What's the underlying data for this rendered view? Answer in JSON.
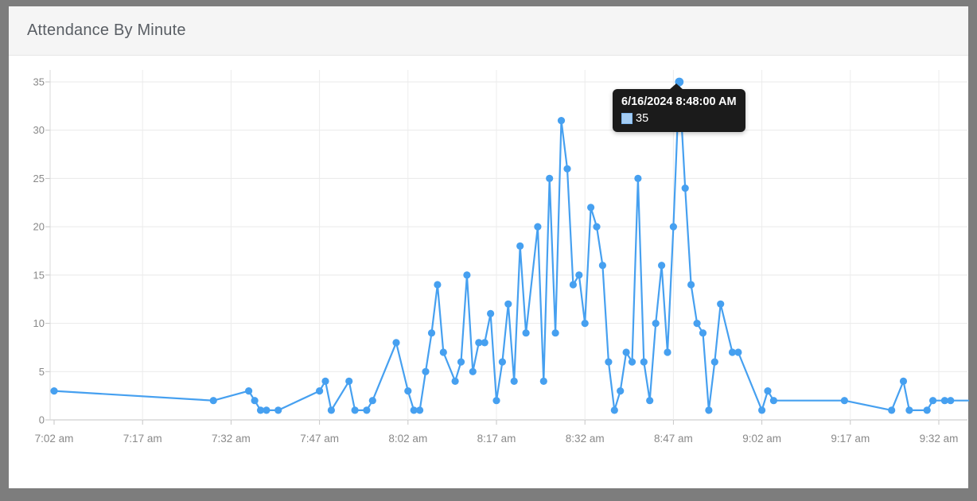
{
  "header": {
    "title": "Attendance By Minute"
  },
  "chart_data": {
    "type": "line",
    "title": "Attendance By Minute",
    "xlabel": "",
    "ylabel": "",
    "ylim": [
      0,
      35
    ],
    "y_ticks": [
      0,
      5,
      10,
      15,
      20,
      25,
      30,
      35
    ],
    "x_tick_labels": [
      "7:02 am",
      "7:17 am",
      "7:32 am",
      "7:47 am",
      "8:02 am",
      "8:17 am",
      "8:32 am",
      "8:47 am",
      "9:02 am",
      "9:17 am",
      "9:32 am"
    ],
    "grid": "on",
    "legend": "none",
    "colors": {
      "line": "#46a0f0",
      "legend_swatch_fill": "#a5cdf4",
      "legend_swatch_border": "#7eb6ee"
    },
    "series": [
      {
        "name": "Attendance",
        "points": [
          [
            "7:02",
            3
          ],
          [
            "7:29",
            2
          ],
          [
            "7:35",
            3
          ],
          [
            "7:36",
            2
          ],
          [
            "7:37",
            1
          ],
          [
            "7:38",
            1
          ],
          [
            "7:40",
            1
          ],
          [
            "7:47",
            3
          ],
          [
            "7:48",
            4
          ],
          [
            "7:49",
            1
          ],
          [
            "7:52",
            4
          ],
          [
            "7:53",
            1
          ],
          [
            "7:55",
            1
          ],
          [
            "7:56",
            2
          ],
          [
            "8:00",
            8
          ],
          [
            "8:02",
            3
          ],
          [
            "8:03",
            1
          ],
          [
            "8:04",
            1
          ],
          [
            "8:05",
            5
          ],
          [
            "8:06",
            9
          ],
          [
            "8:07",
            14
          ],
          [
            "8:08",
            7
          ],
          [
            "8:10",
            4
          ],
          [
            "8:11",
            6
          ],
          [
            "8:12",
            15
          ],
          [
            "8:13",
            5
          ],
          [
            "8:14",
            8
          ],
          [
            "8:15",
            8
          ],
          [
            "8:16",
            11
          ],
          [
            "8:17",
            2
          ],
          [
            "8:18",
            6
          ],
          [
            "8:19",
            12
          ],
          [
            "8:20",
            4
          ],
          [
            "8:21",
            18
          ],
          [
            "8:22",
            9
          ],
          [
            "8:24",
            20
          ],
          [
            "8:25",
            4
          ],
          [
            "8:26",
            25
          ],
          [
            "8:27",
            9
          ],
          [
            "8:28",
            31
          ],
          [
            "8:29",
            26
          ],
          [
            "8:30",
            14
          ],
          [
            "8:31",
            15
          ],
          [
            "8:32",
            10
          ],
          [
            "8:33",
            22
          ],
          [
            "8:34",
            20
          ],
          [
            "8:35",
            16
          ],
          [
            "8:36",
            6
          ],
          [
            "8:37",
            1
          ],
          [
            "8:38",
            3
          ],
          [
            "8:39",
            7
          ],
          [
            "8:40",
            6
          ],
          [
            "8:41",
            25
          ],
          [
            "8:42",
            6
          ],
          [
            "8:43",
            2
          ],
          [
            "8:44",
            10
          ],
          [
            "8:45",
            16
          ],
          [
            "8:46",
            7
          ],
          [
            "8:47",
            20
          ],
          [
            "8:48",
            35
          ],
          [
            "8:49",
            24
          ],
          [
            "8:50",
            14
          ],
          [
            "8:51",
            10
          ],
          [
            "8:52",
            9
          ],
          [
            "8:53",
            1
          ],
          [
            "8:54",
            6
          ],
          [
            "8:55",
            12
          ],
          [
            "8:57",
            7
          ],
          [
            "8:58",
            7
          ],
          [
            "9:02",
            1
          ],
          [
            "9:03",
            3
          ],
          [
            "9:04",
            2
          ],
          [
            "9:16",
            2
          ],
          [
            "9:24",
            1
          ],
          [
            "9:26",
            4
          ],
          [
            "9:27",
            1
          ],
          [
            "9:30",
            1
          ],
          [
            "9:31",
            2
          ],
          [
            "9:33",
            2
          ],
          [
            "9:34",
            2
          ]
        ],
        "trail_to": {
          "time": "9:37",
          "value": 2
        }
      }
    ]
  },
  "tooltip": {
    "title": "6/16/2024 8:48:00 AM",
    "value": "35",
    "time": "8:48"
  }
}
